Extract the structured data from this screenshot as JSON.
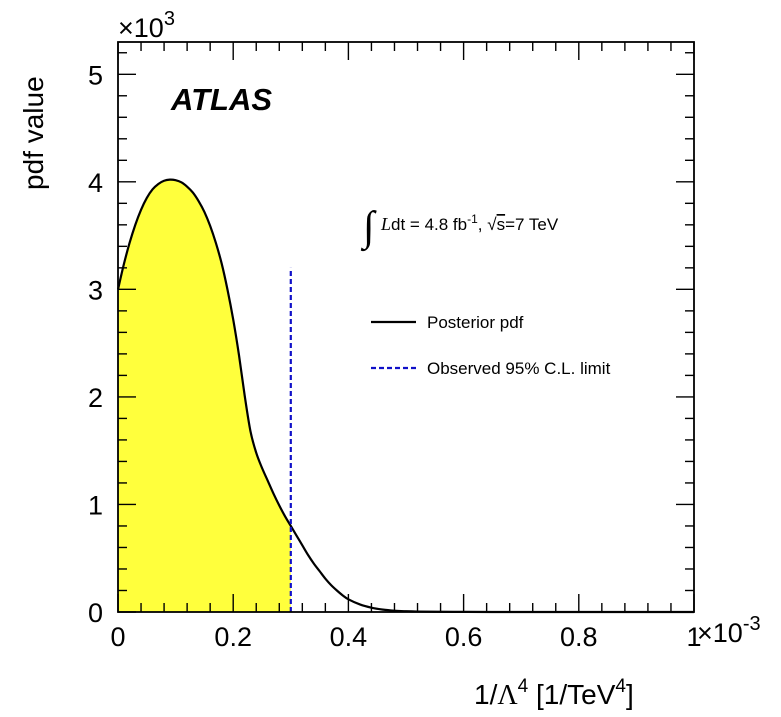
{
  "chart_data": {
    "type": "area",
    "title": "",
    "experiment_label": "ATLAS",
    "xlabel": {
      "main": "1/",
      "lambda": "Λ",
      "pow": "4",
      "unit_open": " [1/TeV",
      "unit_pow": "4",
      "unit_close": "]"
    },
    "ylabel": "pdf value",
    "x_multiplier": {
      "base": "×10",
      "exp": "-3"
    },
    "y_multiplier": {
      "base": "×10",
      "exp": "3"
    },
    "xlim": [
      0,
      0.001
    ],
    "ylim": [
      0,
      5300
    ],
    "xticks": [
      0,
      0.0002,
      0.0004,
      0.0006,
      0.0008,
      0.001
    ],
    "xtick_labels": [
      "0",
      "0.2",
      "0.4",
      "0.6",
      "0.8",
      "1"
    ],
    "yticks": [
      0,
      1000,
      2000,
      3000,
      4000,
      5000
    ],
    "ytick_labels": [
      "0",
      "1",
      "2",
      "3",
      "4",
      "5"
    ],
    "lumi": {
      "integral": "∫",
      "L": "L",
      "dt": "dt  = 4.8 fb",
      "dt_exp": "-1",
      "comma": ",  ",
      "sqrt": "√",
      "s": "s",
      "energy": "=7 TeV"
    },
    "series": [
      {
        "name": "Posterior pdf",
        "line_color": "#000000",
        "fill_color": "#ffff3c",
        "x": [
          0,
          1e-05,
          2e-05,
          3e-05,
          4e-05,
          5e-05,
          6e-05,
          7e-05,
          8e-05,
          9e-05,
          0.0001,
          0.00011,
          0.00012,
          0.00013,
          0.00014,
          0.00015,
          0.00016,
          0.00017,
          0.00018,
          0.00019,
          0.0002,
          0.00021,
          0.00022,
          0.00023,
          0.00024,
          0.00025,
          0.00026,
          0.00027,
          0.00028,
          0.00029,
          0.0003,
          0.00031,
          0.00032,
          0.00033,
          0.00034,
          0.00035,
          0.00036,
          0.00037,
          0.00038,
          0.00039,
          0.0004,
          0.00042,
          0.00044,
          0.00046,
          0.00048,
          0.0005,
          0.00052,
          0.00055,
          0.0006,
          0.00065,
          0.0007,
          0.0008,
          0.0009,
          0.001
        ],
        "values": [
          3000,
          3230,
          3430,
          3600,
          3740,
          3850,
          3930,
          3980,
          4010,
          4020,
          4015,
          3995,
          3955,
          3900,
          3820,
          3720,
          3590,
          3430,
          3240,
          3000,
          2720,
          2390,
          2010,
          1680,
          1480,
          1340,
          1220,
          1100,
          990,
          890,
          800,
          710,
          620,
          530,
          450,
          380,
          310,
          250,
          200,
          155,
          118,
          70,
          40,
          22,
          12,
          7,
          4,
          2,
          1,
          0,
          0,
          0,
          0,
          0
        ]
      }
    ],
    "limit": {
      "name": "Observed 95% C.L. limit",
      "x": 0.0003,
      "y_top": 3200,
      "color": "#1010c8"
    },
    "legend_placement": "right",
    "grid": false
  }
}
